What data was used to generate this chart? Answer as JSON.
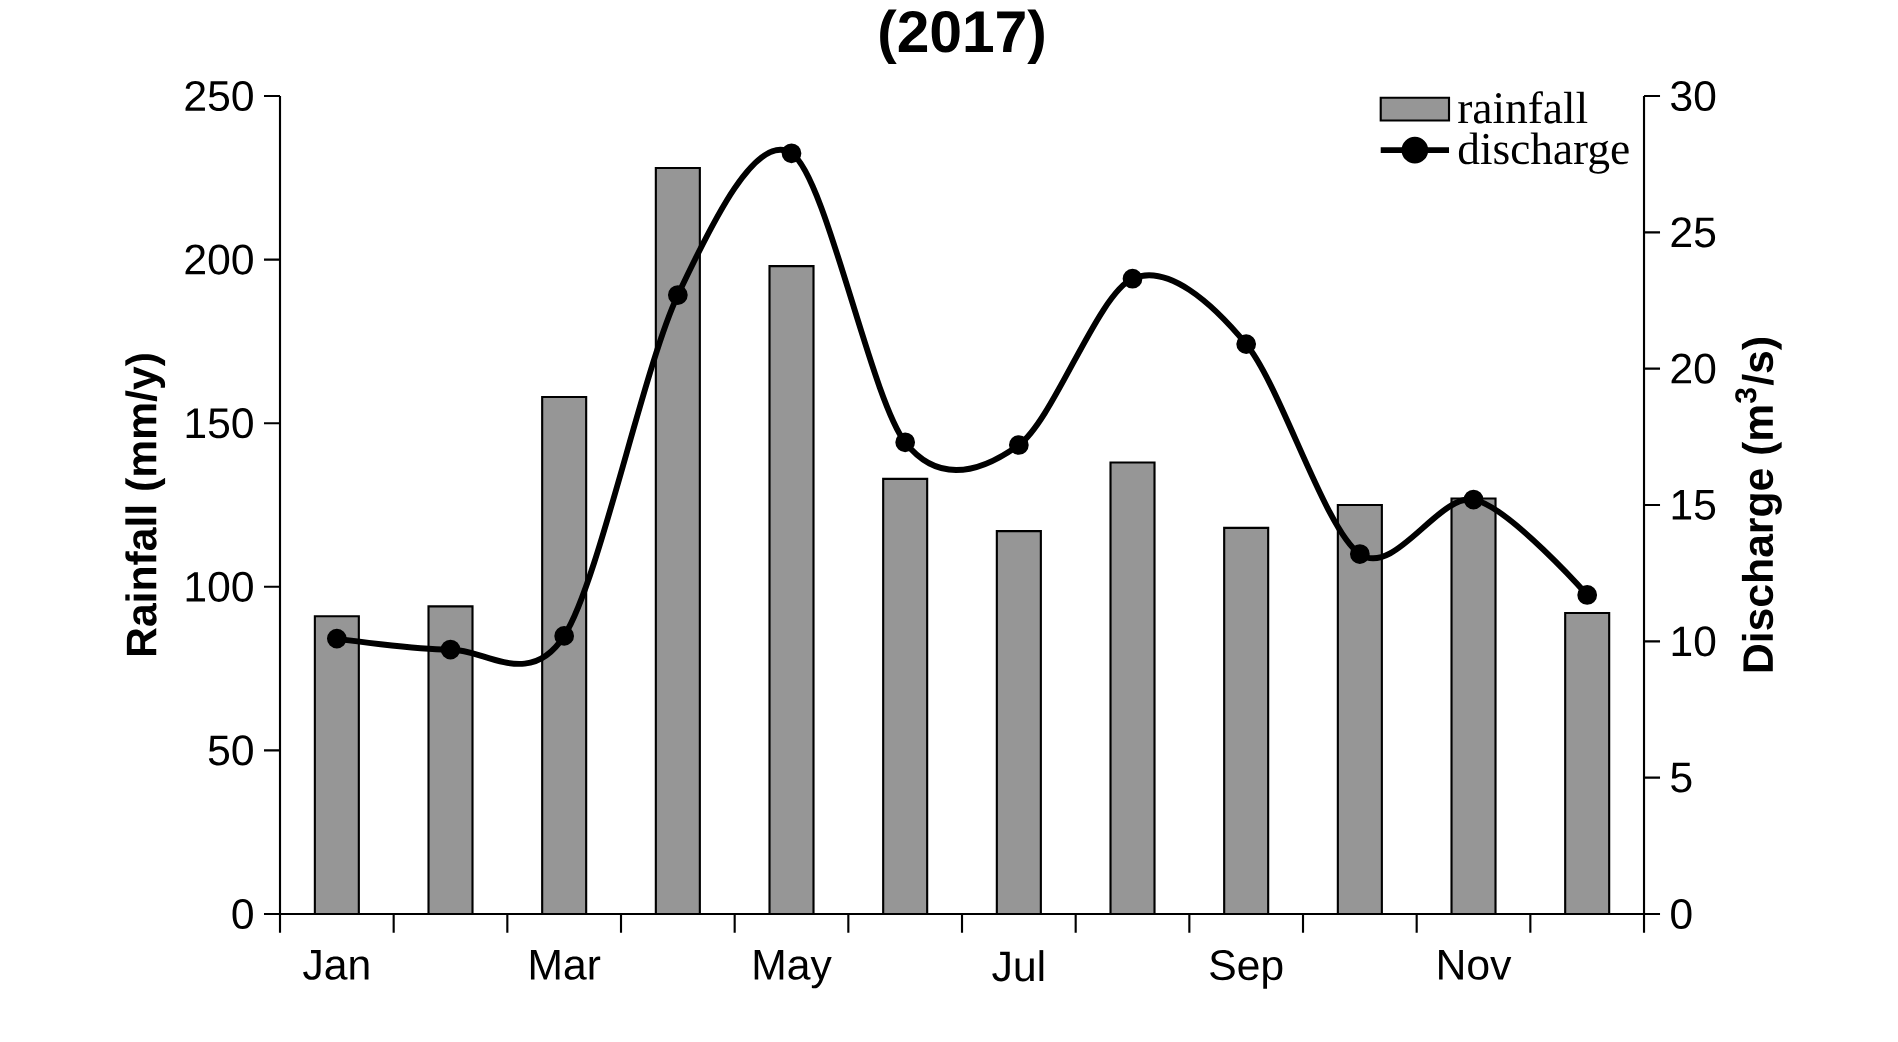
{
  "chart_data": {
    "type": "bar",
    "title": "(2017)",
    "ylabel": "Rainfall (mm/y)",
    "y2label": "Discharge (m$^{3}$/s)",
    "categories": [
      "Jan",
      null,
      "Mar",
      null,
      "May",
      null,
      "Jul",
      null,
      "Sep",
      null,
      "Nov",
      null
    ],
    "ylim": [
      0,
      250
    ],
    "yticks": [
      0,
      50,
      100,
      150,
      200,
      250
    ],
    "y2lim": [
      0,
      30
    ],
    "y2ticks": [
      0,
      5,
      10,
      15,
      20,
      25,
      30
    ],
    "legend": "top right",
    "series": [
      {
        "name": "rainfall",
        "color": "#969696",
        "values": [
          91,
          94,
          158,
          228,
          198,
          133,
          117,
          138,
          118,
          125,
          127,
          92
        ]
      },
      {
        "name": "discharge",
        "type": "line",
        "axis": "y2",
        "color": "#000000",
        "marker": "circle",
        "line_style": "solid",
        "values": [
          10.1,
          9.7,
          10.2,
          22.7,
          27.9,
          17.3,
          17.2,
          23.3,
          20.9,
          13.2,
          15.2,
          11.7
        ]
      }
    ]
  }
}
